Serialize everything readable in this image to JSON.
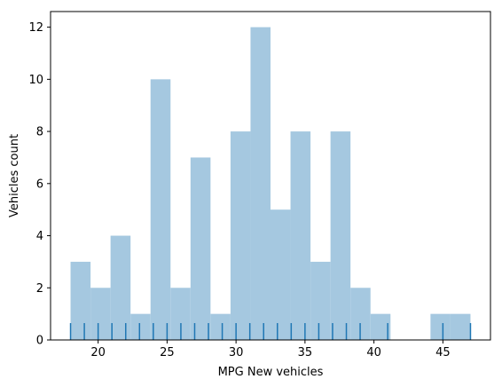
{
  "chart_data": {
    "type": "bar",
    "title": "",
    "xlabel": "MPG New vehicles",
    "ylabel": "Vehicles count",
    "xlim": [
      16.55,
      48.45
    ],
    "ylim": [
      0,
      12.6
    ],
    "xticks": [
      20,
      25,
      30,
      35,
      40,
      45
    ],
    "yticks": [
      0,
      2,
      4,
      6,
      8,
      10,
      12
    ],
    "grid": false,
    "bar_color": "#a5c8e0",
    "rug_color": "#1f77b4",
    "bins": [
      {
        "x0": 18.0,
        "x1": 19.45,
        "count": 3
      },
      {
        "x0": 19.45,
        "x1": 20.9,
        "count": 2
      },
      {
        "x0": 20.9,
        "x1": 22.35,
        "count": 4
      },
      {
        "x0": 22.35,
        "x1": 23.8,
        "count": 1
      },
      {
        "x0": 23.8,
        "x1": 25.25,
        "count": 10
      },
      {
        "x0": 25.25,
        "x1": 26.7,
        "count": 2
      },
      {
        "x0": 26.7,
        "x1": 28.15,
        "count": 7
      },
      {
        "x0": 28.15,
        "x1": 29.6,
        "count": 1
      },
      {
        "x0": 29.6,
        "x1": 31.05,
        "count": 8
      },
      {
        "x0": 31.05,
        "x1": 32.5,
        "count": 12
      },
      {
        "x0": 32.5,
        "x1": 33.95,
        "count": 5
      },
      {
        "x0": 33.95,
        "x1": 35.4,
        "count": 8
      },
      {
        "x0": 35.4,
        "x1": 36.85,
        "count": 3
      },
      {
        "x0": 36.85,
        "x1": 38.3,
        "count": 8
      },
      {
        "x0": 38.3,
        "x1": 39.75,
        "count": 2
      },
      {
        "x0": 39.75,
        "x1": 41.2,
        "count": 1
      },
      {
        "x0": 41.2,
        "x1": 42.65,
        "count": 0
      },
      {
        "x0": 42.65,
        "x1": 44.1,
        "count": 0
      },
      {
        "x0": 44.1,
        "x1": 45.55,
        "count": 1
      },
      {
        "x0": 45.55,
        "x1": 47.0,
        "count": 1
      }
    ],
    "rug": [
      18,
      19,
      20,
      21,
      22,
      23,
      24,
      25,
      26,
      27,
      28,
      29,
      30,
      31,
      32,
      33,
      34,
      35,
      36,
      37,
      38,
      39,
      41,
      45,
      47
    ]
  }
}
